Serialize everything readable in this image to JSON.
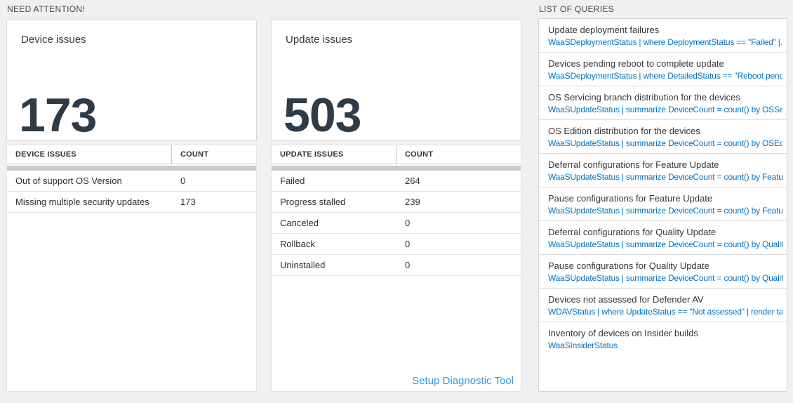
{
  "colors": {
    "background": "#f0f0f0",
    "query_link_blue": "#0072c6",
    "diagnostic_link_blue": "#3a96dd",
    "big_number": "#2e3b48",
    "scrollbar_gray": "#c8ccd1"
  },
  "need_attention": {
    "header": "NEED ATTENTION!",
    "device_card": {
      "title": "Device issues",
      "value": "173",
      "table": {
        "columns": [
          "DEVICE ISSUES",
          "COUNT"
        ],
        "rows": [
          {
            "label": "Out of support OS Version",
            "count": "0"
          },
          {
            "label": "Missing multiple security updates",
            "count": "173"
          }
        ]
      }
    },
    "update_card": {
      "title": "Update issues",
      "value": "503",
      "table": {
        "columns": [
          "UPDATE ISSUES",
          "COUNT"
        ],
        "rows": [
          {
            "label": "Failed",
            "count": "264"
          },
          {
            "label": "Progress stalled",
            "count": "239"
          },
          {
            "label": "Canceled",
            "count": "0"
          },
          {
            "label": "Rollback",
            "count": "0"
          },
          {
            "label": "Uninstalled",
            "count": "0"
          }
        ]
      },
      "link": "Setup Diagnostic Tool"
    }
  },
  "queries": {
    "header": "LIST OF QUERIES",
    "items": [
      {
        "title": "Update deployment failures",
        "query": "WaaSDeploymentStatus | where DeploymentStatus == \"Failed\" |..."
      },
      {
        "title": "Devices pending reboot to complete update",
        "query": "WaaSDeploymentStatus | where DetailedStatus == \"Reboot pend..."
      },
      {
        "title": "OS Servicing branch distribution for the devices",
        "query": "WaaSUpdateStatus | summarize DeviceCount = count() by OSSer..."
      },
      {
        "title": "OS Edition distribution for the devices",
        "query": "WaaSUpdateStatus | summarize DeviceCount = count() by OSEdit..."
      },
      {
        "title": "Deferral configurations for Feature Update",
        "query": "WaaSUpdateStatus | summarize DeviceCount = count() by Featur..."
      },
      {
        "title": "Pause configurations for Feature Update",
        "query": "WaaSUpdateStatus | summarize DeviceCount = count() by Featur..."
      },
      {
        "title": "Deferral configurations for Quality Update",
        "query": "WaaSUpdateStatus | summarize DeviceCount = count() by Qualit..."
      },
      {
        "title": "Pause configurations for Quality Update",
        "query": "WaaSUpdateStatus | summarize DeviceCount = count() by Qualit..."
      },
      {
        "title": "Devices not assessed for Defender AV",
        "query": "WDAVStatus | where UpdateStatus == \"Not assessed\" | render ta..."
      },
      {
        "title": "Inventory of devices on Insider builds",
        "query": "WaaSInsiderStatus"
      }
    ]
  }
}
